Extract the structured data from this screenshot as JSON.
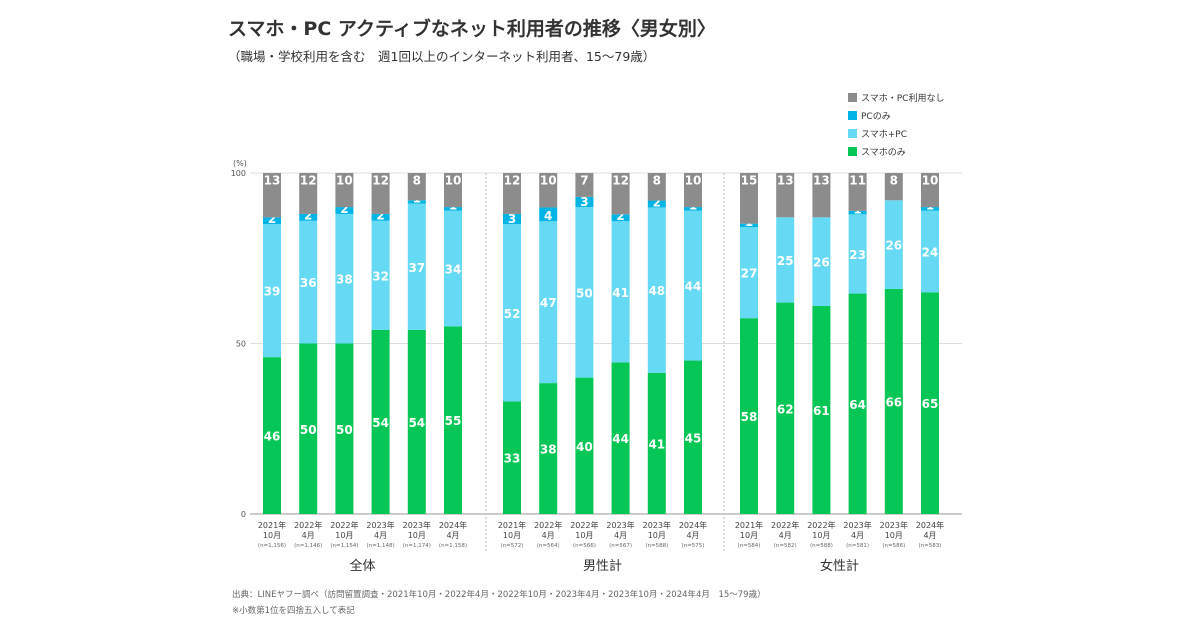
{
  "title": "スマホ・PC アクティブなネット利用者の推移〈男女別〉",
  "subtitle": "（職場・学校利用を含む　週1回以上のインターネット利用者、15〜79歳）",
  "source": "出典：LINEヤフー調べ（訪問留置調査・2021年10月・2022年4月・2022年10月・2023年4月・2023年10月・2024年4月　15〜79歳）",
  "note": "※小数第1位を四捨五入して表記",
  "chart_data": {
    "type": "bar",
    "stacked": true,
    "yunit": "(%)",
    "ylim": [
      0,
      100
    ],
    "yticks": [
      0,
      50,
      100
    ],
    "legend_position": "top-right",
    "series": [
      {
        "name": "スマホのみ",
        "color": "#06c755"
      },
      {
        "name": "スマホ+PC",
        "color": "#66d9f5"
      },
      {
        "name": "PCのみ",
        "color": "#00b4e6"
      },
      {
        "name": "スマホ・PC利用なし",
        "color": "#8c8c8c"
      }
    ],
    "legend_order": [
      "スマホ・PC利用なし",
      "PCのみ",
      "スマホ+PC",
      "スマホのみ"
    ],
    "groups": [
      {
        "label": "全体",
        "bars": [
          {
            "year": "2021年",
            "month": "10月",
            "n": "(n=1,156)",
            "values": [
              46,
              39,
              2,
              13
            ]
          },
          {
            "year": "2022年",
            "month": "4月",
            "n": "(n=1,146)",
            "values": [
              50,
              36,
              2,
              12
            ]
          },
          {
            "year": "2022年",
            "month": "10月",
            "n": "(n=1,154)",
            "values": [
              50,
              38,
              2,
              10
            ]
          },
          {
            "year": "2023年",
            "month": "4月",
            "n": "(n=1,148)",
            "values": [
              54,
              32,
              2,
              12
            ]
          },
          {
            "year": "2023年",
            "month": "10月",
            "n": "(n=1,174)",
            "values": [
              54,
              37,
              1,
              8
            ]
          },
          {
            "year": "2024年",
            "month": "4月",
            "n": "(n=1,158)",
            "values": [
              55,
              34,
              1,
              10
            ]
          }
        ]
      },
      {
        "label": "男性計",
        "bars": [
          {
            "year": "2021年",
            "month": "10月",
            "n": "(n=572)",
            "values": [
              33,
              52,
              3,
              12
            ]
          },
          {
            "year": "2022年",
            "month": "4月",
            "n": "(n=564)",
            "values": [
              38,
              47,
              4,
              10
            ]
          },
          {
            "year": "2022年",
            "month": "10月",
            "n": "(n=566)",
            "values": [
              40,
              50,
              3,
              7
            ]
          },
          {
            "year": "2023年",
            "month": "4月",
            "n": "(n=567)",
            "values": [
              44,
              41,
              2,
              12
            ]
          },
          {
            "year": "2023年",
            "month": "10月",
            "n": "(n=588)",
            "values": [
              41,
              48,
              2,
              8
            ]
          },
          {
            "year": "2024年",
            "month": "4月",
            "n": "(n=575)",
            "values": [
              45,
              44,
              1,
              10
            ]
          }
        ]
      },
      {
        "label": "女性計",
        "bars": [
          {
            "year": "2021年",
            "month": "10月",
            "n": "(n=584)",
            "values": [
              58,
              27,
              1,
              15
            ]
          },
          {
            "year": "2022年",
            "month": "4月",
            "n": "(n=582)",
            "values": [
              62,
              25,
              0,
              13
            ]
          },
          {
            "year": "2022年",
            "month": "10月",
            "n": "(n=588)",
            "values": [
              61,
              26,
              0,
              13
            ]
          },
          {
            "year": "2023年",
            "month": "4月",
            "n": "(n=581)",
            "values": [
              64,
              23,
              1,
              11
            ]
          },
          {
            "year": "2023年",
            "month": "10月",
            "n": "(n=586)",
            "values": [
              66,
              26,
              0,
              8
            ]
          },
          {
            "year": "2024年",
            "month": "4月",
            "n": "(n=583)",
            "values": [
              65,
              24,
              1,
              10
            ]
          }
        ]
      }
    ]
  }
}
